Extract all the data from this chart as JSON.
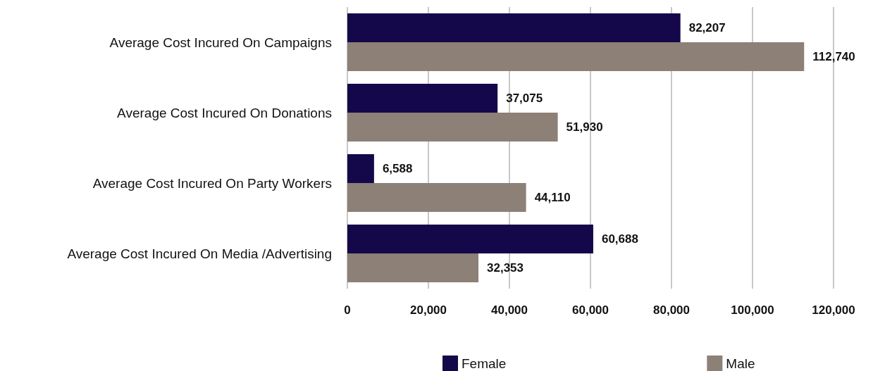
{
  "chart_data": {
    "type": "bar",
    "orientation": "horizontal",
    "categories": [
      "Average Cost Incured On Campaigns",
      "Average Cost Incured On Donations",
      "Average Cost Incured On Party Workers",
      "Average Cost Incured On Media /Advertising"
    ],
    "series": [
      {
        "name": "Female",
        "color": "#14084a",
        "values": [
          82207,
          37075,
          6588,
          60688
        ],
        "value_labels": [
          "82,207",
          "37,075",
          "6,588",
          "60,688"
        ]
      },
      {
        "name": "Male",
        "color": "#8c8077",
        "values": [
          112740,
          51930,
          44110,
          32353
        ],
        "value_labels": [
          "112,740",
          "51,930",
          "44,110",
          "32,353"
        ]
      }
    ],
    "xlim": [
      0,
      120000
    ],
    "xticks": [
      0,
      {
        "value": 20000,
        "label": "20,000"
      },
      {
        "value": 40000,
        "label": "40,000"
      },
      {
        "value": 60000,
        "label": "60,000"
      },
      {
        "value": 80000,
        "label": "80,000"
      },
      {
        "value": 100000,
        "label": "100,000"
      },
      {
        "value": 120000,
        "label": "120,000"
      }
    ],
    "grid": "x",
    "legend": "bottom"
  }
}
